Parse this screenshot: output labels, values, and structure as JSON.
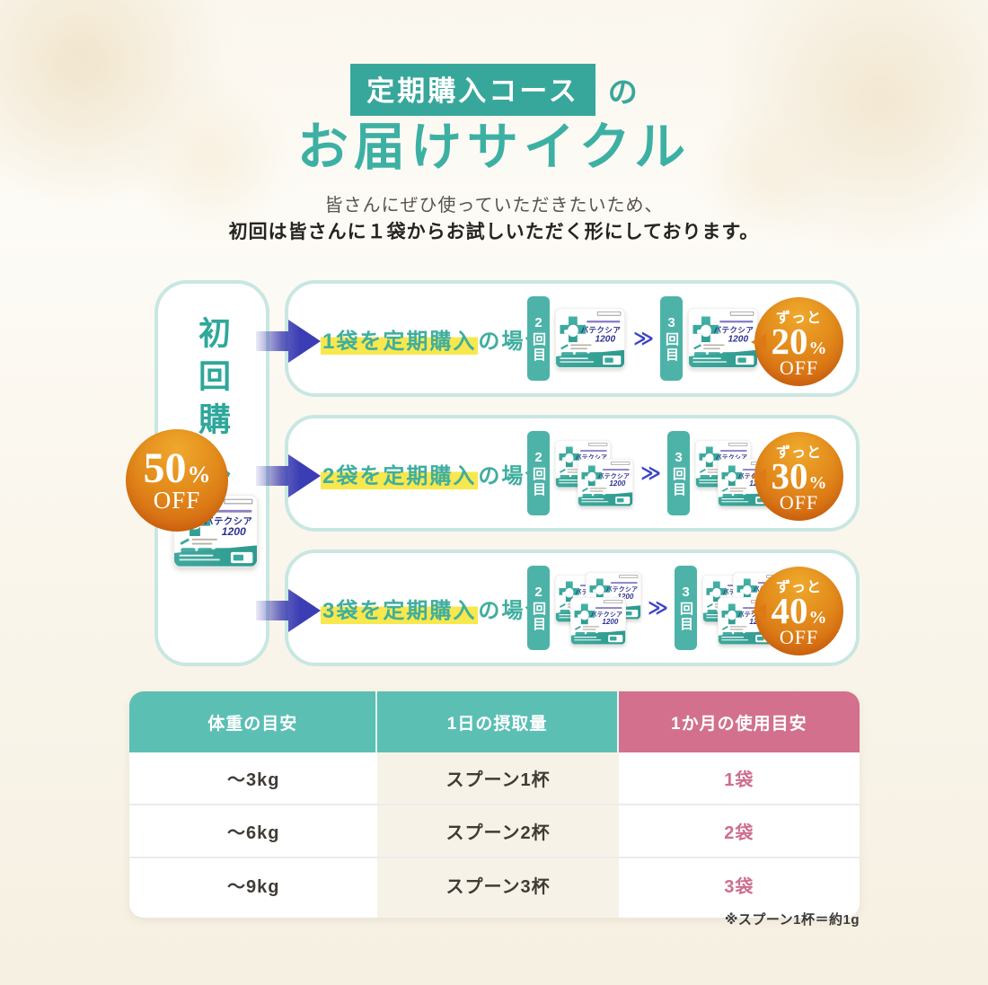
{
  "header": {
    "badge": "定期購入コース",
    "particle": "の",
    "title": "お届けサイクル",
    "lead1": "皆さんにぜひ使っていただきたいため、",
    "lead2": "初回は皆さんに１袋からお試しいただく形にしております。"
  },
  "first": {
    "label": "初回購入",
    "badge": {
      "value": "50",
      "unit": "%",
      "suffix": "OFF"
    }
  },
  "product": {
    "name": "バテクシア",
    "size": "1200"
  },
  "icons": {
    "next_chevron": "≫"
  },
  "rows": [
    {
      "highlight": "1袋を定期購入",
      "rest": "の場合",
      "cycle2": "2回目",
      "cycle3": "3回目",
      "bags": 1,
      "badge": {
        "prefix": "ずっと",
        "value": "20",
        "unit": "%",
        "suffix": "OFF"
      }
    },
    {
      "highlight": "2袋を定期購入",
      "rest": "の場合",
      "cycle2": "2回目",
      "cycle3": "3回目",
      "bags": 2,
      "badge": {
        "prefix": "ずっと",
        "value": "30",
        "unit": "%",
        "suffix": "OFF"
      }
    },
    {
      "highlight": "3袋を定期購入",
      "rest": "の場合",
      "cycle2": "2回目",
      "cycle3": "3回目",
      "bags": 3,
      "badge": {
        "prefix": "ずっと",
        "value": "40",
        "unit": "%",
        "suffix": "OFF"
      }
    }
  ],
  "table": {
    "headers": [
      "体重の目安",
      "1日の摂取量",
      "1か月の使用目安"
    ],
    "rows": [
      [
        "〜3kg",
        "スプーン1杯",
        "1袋"
      ],
      [
        "〜6kg",
        "スプーン2杯",
        "2袋"
      ],
      [
        "〜9kg",
        "スプーン3杯",
        "3袋"
      ]
    ]
  },
  "footnote": "※スプーン1杯＝約1g",
  "colors": {
    "teal": "#38a79b",
    "teal_border": "#c9e7e2",
    "yellow_highlight": "#f8e84d",
    "indigo_arrow": "#3b3db4",
    "orange_badge": "#e07d15",
    "pink": "#d2708d",
    "cream_cell": "#f7f2e8"
  }
}
